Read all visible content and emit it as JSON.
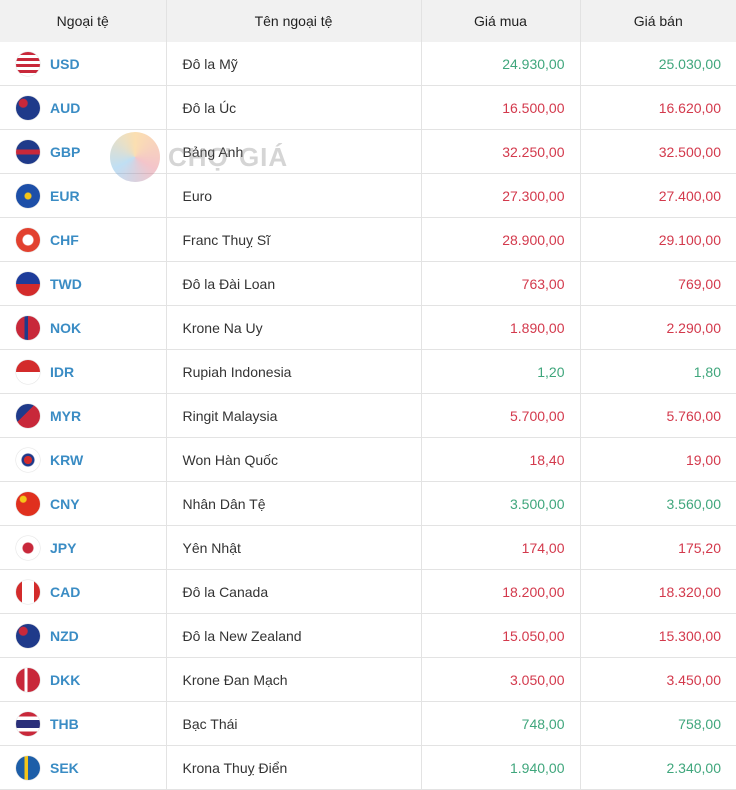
{
  "headers": [
    "Ngoại tệ",
    "Tên ngoại tệ",
    "Giá mua",
    "Giá bán"
  ],
  "watermark": "CHỢ GIÁ",
  "colors": {
    "up": "#3fa67c",
    "down": "#d3394c",
    "code": "#3a8cc4"
  },
  "rows": [
    {
      "code": "USD",
      "name": "Đô la Mỹ",
      "buy": "24.930,00",
      "sell": "25.030,00",
      "trend": "up",
      "flag": "repeating-linear-gradient(#c8283a 0 3px,#fff 3px 6px)"
    },
    {
      "code": "AUD",
      "name": "Đô la Úc",
      "buy": "16.500,00",
      "sell": "16.620,00",
      "trend": "down",
      "flag": "radial-gradient(circle at 30% 30%,#c8283a 0 4px,#1f3a8a 5px)"
    },
    {
      "code": "GBP",
      "name": "Bảng Anh",
      "buy": "32.250,00",
      "sell": "32.500,00",
      "trend": "down",
      "flag": "linear-gradient(#1f3a8a 40%,#c8283a 40% 60%,#1f3a8a 60%)"
    },
    {
      "code": "EUR",
      "name": "Euro",
      "buy": "27.300,00",
      "sell": "27.400,00",
      "trend": "down",
      "flag": "radial-gradient(circle,#f5c518 0 3px,#1d4fa8 4px)"
    },
    {
      "code": "CHF",
      "name": "Franc Thuỵ Sĩ",
      "buy": "28.900,00",
      "sell": "29.100,00",
      "trend": "down",
      "flag": "radial-gradient(circle,#fff 0 5px,#e2412f 6px)"
    },
    {
      "code": "TWD",
      "name": "Đô la Đài Loan",
      "buy": "763,00",
      "sell": "769,00",
      "trend": "down",
      "flag": "linear-gradient(#1d3c9a 50%,#d32b2b 50%)"
    },
    {
      "code": "NOK",
      "name": "Krone Na Uy",
      "buy": "1.890,00",
      "sell": "2.290,00",
      "trend": "down",
      "flag": "linear-gradient(90deg,#c8283a 35%,#1f3a8a 35% 50%,#c8283a 50%)"
    },
    {
      "code": "IDR",
      "name": "Rupiah Indonesia",
      "buy": "1,20",
      "sell": "1,80",
      "trend": "up",
      "flag": "linear-gradient(#d32b2b 50%,#fff 50%)"
    },
    {
      "code": "MYR",
      "name": "Ringit Malaysia",
      "buy": "5.700,00",
      "sell": "5.760,00",
      "trend": "down",
      "flag": "linear-gradient(135deg,#1f3a8a 40%,#c8283a 40%)"
    },
    {
      "code": "KRW",
      "name": "Won Hàn Quốc",
      "buy": "18,40",
      "sell": "19,00",
      "trend": "down",
      "flag": "radial-gradient(circle,#d32b2b 0 4px,#1f3a8a 4px 6px,#fff 7px)"
    },
    {
      "code": "CNY",
      "name": "Nhân Dân Tệ",
      "buy": "3.500,00",
      "sell": "3.560,00",
      "trend": "up",
      "flag": "radial-gradient(circle at 30% 30%,#f5c518 0 3px,#e0301e 4px)"
    },
    {
      "code": "JPY",
      "name": "Yên Nhật",
      "buy": "174,00",
      "sell": "175,20",
      "trend": "down",
      "flag": "radial-gradient(circle,#c8283a 0 5px,#fff 6px)"
    },
    {
      "code": "CAD",
      "name": "Đô la Canada",
      "buy": "18.200,00",
      "sell": "18.320,00",
      "trend": "down",
      "flag": "linear-gradient(90deg,#d32b2b 25%,#fff 25% 75%,#d32b2b 75%)"
    },
    {
      "code": "NZD",
      "name": "Đô la New Zealand",
      "buy": "15.050,00",
      "sell": "15.300,00",
      "trend": "down",
      "flag": "radial-gradient(circle at 30% 30%,#c8283a 0 4px,#1f3a8a 5px)"
    },
    {
      "code": "DKK",
      "name": "Krone Đan Mạch",
      "buy": "3.050,00",
      "sell": "3.450,00",
      "trend": "down",
      "flag": "linear-gradient(90deg,#c8283a 35%,#fff 35% 48%,#c8283a 48%)"
    },
    {
      "code": "THB",
      "name": "Bạc Thái",
      "buy": "748,00",
      "sell": "758,00",
      "trend": "up",
      "flag": "linear-gradient(#c8283a 18%,#fff 18% 34%,#2a2f7a 34% 66%,#fff 66% 82%,#c8283a 82%)"
    },
    {
      "code": "SEK",
      "name": "Krona Thuỵ Điển",
      "buy": "1.940,00",
      "sell": "2.340,00",
      "trend": "up",
      "flag": "linear-gradient(90deg,#1d5ea8 35%,#f5c518 35% 50%,#1d5ea8 50%)"
    }
  ]
}
